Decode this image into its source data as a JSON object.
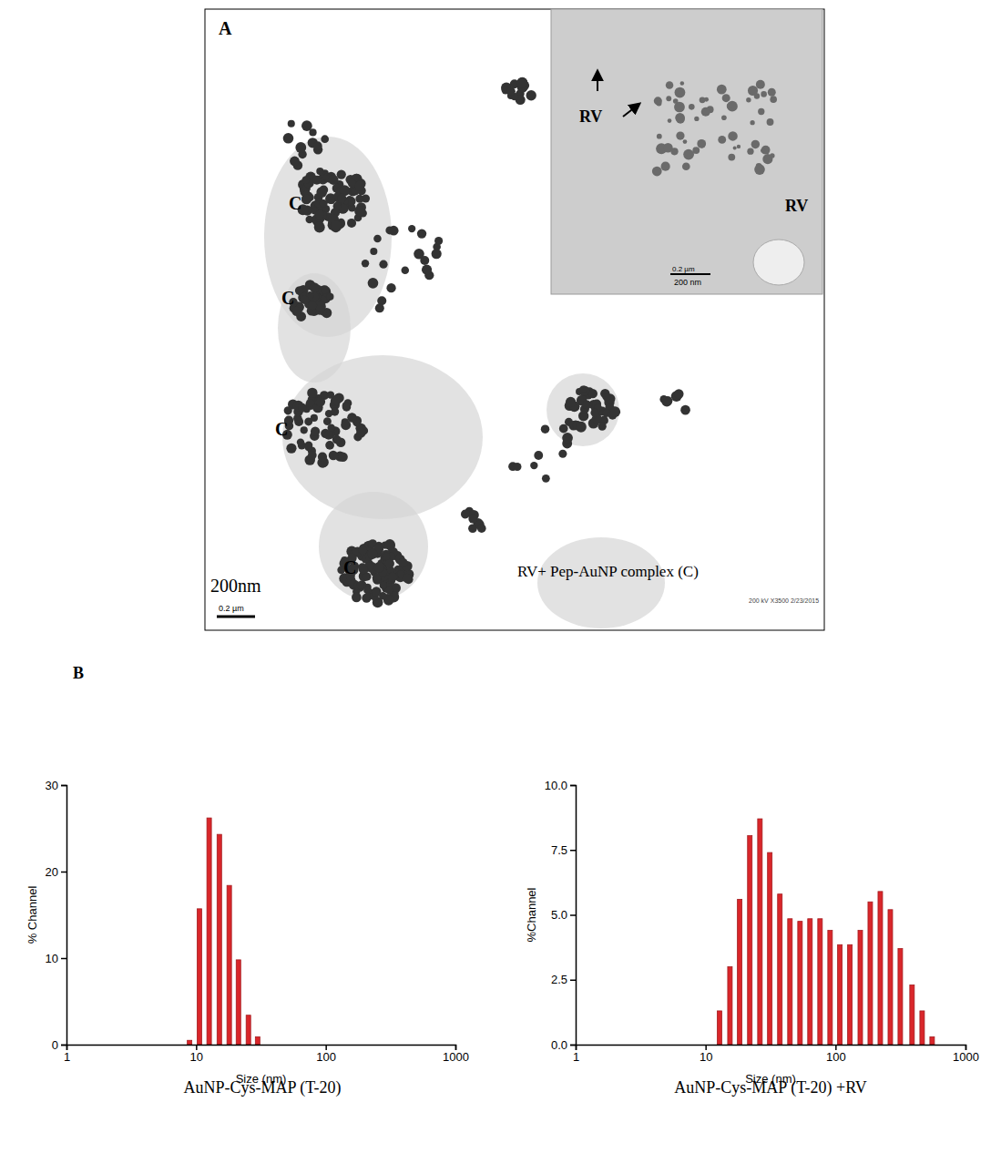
{
  "chart_data": [
    {
      "type": "bar",
      "title": "AuNP-Cys-MAP (T-20)",
      "x_label": "Size (nm)",
      "y_label": "% Channel",
      "x": [
        8.9,
        10.6,
        12.6,
        15.1,
        18.0,
        21.2,
        25.3,
        29.8
      ],
      "values": [
        0.5,
        15.7,
        26.2,
        24.3,
        18.4,
        9.8,
        3.4,
        0.9
      ],
      "color": "#d9262a",
      "log": "x",
      "xlim": [
        1,
        1000
      ],
      "xticks": [
        1,
        10,
        100,
        1000
      ],
      "ylim": [
        0,
        30
      ],
      "yticks": [
        0,
        10,
        20,
        30
      ]
    },
    {
      "type": "bar",
      "title": "AuNP-Cys-MAP (T-20) +RV",
      "x_label": "Size (nm)",
      "y_label": "%Channel",
      "x": [
        12.8,
        15.4,
        18.3,
        21.9,
        26.2,
        31.2,
        37.3,
        44.6,
        53.3,
        63.6,
        76.0,
        90.8,
        108,
        129,
        155,
        185,
        221,
        264,
        315,
        388,
        464,
        554
      ],
      "values": [
        1.3,
        3.0,
        5.6,
        8.05,
        8.7,
        7.4,
        5.8,
        4.85,
        4.75,
        4.85,
        4.85,
        4.4,
        3.85,
        3.85,
        4.4,
        5.5,
        5.9,
        5.2,
        3.7,
        2.3,
        1.3,
        0.3
      ],
      "color": "#d9262a",
      "log": "x",
      "xlim": [
        1,
        1000
      ],
      "xticks": [
        1,
        10,
        100,
        1000
      ],
      "ylim": [
        0,
        10
      ],
      "yticks": [
        {
          "value": 0,
          "label": "0.0"
        },
        {
          "value": 2.5,
          "label": "2.5"
        },
        {
          "value": 5,
          "label": "5.0"
        },
        {
          "value": 7.5,
          "label": "7.5"
        },
        {
          "value": 10,
          "label": "10.0"
        }
      ]
    }
  ],
  "figure": {
    "panel_a": {
      "letter": "A",
      "cluster_labels": [
        "C",
        "C",
        "C",
        "C"
      ],
      "caption": "RV+ Pep-AuNP complex (C)",
      "scale_bar": "200nm",
      "scale_bar_small": "0.2 µm",
      "footer": "200 kV   X3500   2/23/2015",
      "inset": {
        "labels": [
          "RV",
          "RV"
        ],
        "scale_bar_small": "0.2 µm",
        "scale_bar": "200 nm"
      }
    },
    "panel_b": {
      "letter": "B"
    }
  }
}
